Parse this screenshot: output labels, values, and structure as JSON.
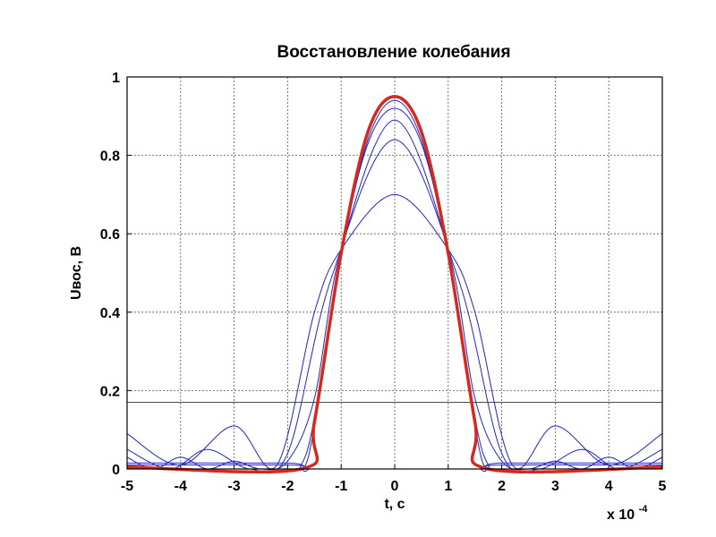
{
  "chart_data": {
    "type": "line",
    "title": "Восстановление колебания",
    "xlabel": "t, c",
    "ylabel": "Uвос, В",
    "x_multiplier": "x 10",
    "x_multiplier_exp": "-4",
    "xlim": [
      -5,
      5
    ],
    "ylim": [
      0,
      1
    ],
    "xticks": [
      "-5",
      "-4",
      "-3",
      "-2",
      "-1",
      "0",
      "1",
      "2",
      "3",
      "4",
      "5"
    ],
    "yticks": [
      "0",
      "0.2",
      "0.4",
      "0.6",
      "0.8",
      "1"
    ],
    "grid": true,
    "legend": "none",
    "colors": {
      "series": "#2323c8",
      "highlight": "#d42a1e",
      "axis": "#000000",
      "grid": "#555555"
    },
    "threshold_level": 0.17,
    "series": [
      {
        "x": [
          -5,
          -4,
          -3,
          -2.2,
          -1.5,
          -1,
          0,
          1,
          1.5,
          2.2,
          3,
          4,
          5
        ],
        "y": [
          0.09,
          0.01,
          0.11,
          0.01,
          0.4,
          0.56,
          0.7,
          0.56,
          0.4,
          0.01,
          0.11,
          0.01,
          0.09
        ]
      },
      {
        "x": [
          -5,
          -4.2,
          -3.5,
          -2.7,
          -2,
          -1.2,
          0,
          1.2,
          2,
          2.7,
          3.5,
          4.2,
          5
        ],
        "y": [
          0.05,
          0.0,
          0.05,
          0.0,
          0.04,
          0.48,
          0.84,
          0.48,
          0.04,
          0.0,
          0.05,
          0.0,
          0.05
        ]
      },
      {
        "x": [
          -5,
          -4.5,
          -4,
          -3.5,
          -3,
          -2.5,
          -2,
          -1.5,
          -1,
          0,
          1,
          1.5,
          2,
          2.5,
          3,
          3.5,
          4,
          4.5,
          5
        ],
        "y": [
          0.03,
          0.0,
          0.03,
          0.0,
          0.02,
          0.0,
          0.02,
          0.18,
          0.56,
          0.89,
          0.56,
          0.18,
          0.02,
          0.0,
          0.02,
          0.0,
          0.03,
          0.0,
          0.03
        ]
      },
      {
        "x": [
          -5,
          -2,
          -1.75,
          -1.5,
          -1,
          -0.5,
          0,
          0.5,
          1,
          1.5,
          1.75,
          2,
          5
        ],
        "y": [
          0.015,
          0.015,
          0.01,
          0.13,
          0.55,
          0.83,
          0.92,
          0.83,
          0.55,
          0.13,
          0.01,
          0.015,
          0.015
        ]
      },
      {
        "x": [
          -5,
          -1.9,
          -1.7,
          -1.5,
          -1,
          -0.5,
          0,
          0.5,
          1,
          1.5,
          1.7,
          1.9,
          5
        ],
        "y": [
          0.01,
          0.01,
          0.0,
          0.11,
          0.54,
          0.84,
          0.94,
          0.84,
          0.54,
          0.11,
          0.0,
          0.01,
          0.01
        ]
      },
      {
        "x": [
          -5,
          -1.75,
          -1.5,
          -1,
          -0.5,
          0,
          0.5,
          1,
          1.5,
          1.75,
          5
        ],
        "y": [
          0.005,
          0.0,
          0.12,
          0.55,
          0.86,
          0.95,
          0.86,
          0.55,
          0.12,
          0.0,
          0.005
        ],
        "highlight": true
      }
    ]
  }
}
